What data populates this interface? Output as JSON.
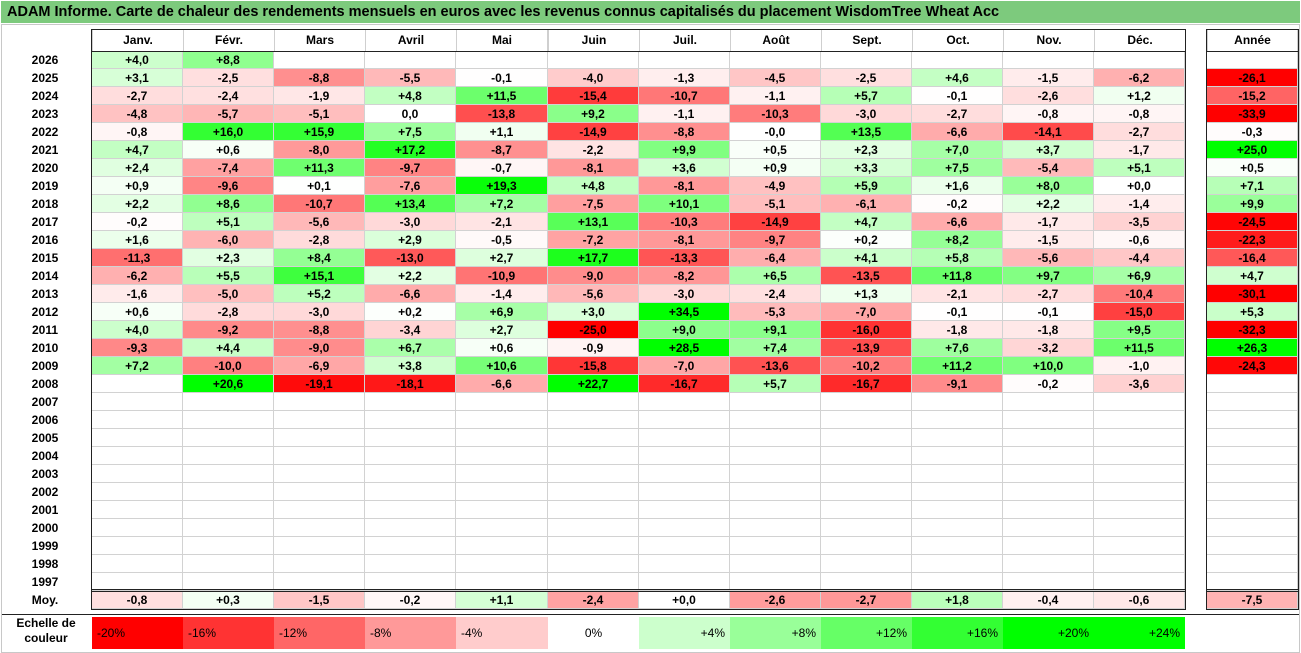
{
  "title": "ADAM Informe. Carte de chaleur des rendements mensuels en euros avec les revenus connus capitalisés du placement WisdomTree Wheat Acc",
  "chart_data": {
    "type": "heatmap",
    "title": "ADAM Informe. Carte de chaleur des rendements mensuels en euros avec les revenus connus capitalisés du placement WisdomTree Wheat Acc",
    "columns": [
      "Janv.",
      "Févr.",
      "Mars",
      "Avril",
      "Mai",
      "Juin",
      "Juil.",
      "Août",
      "Sept.",
      "Oct.",
      "Nov.",
      "Déc."
    ],
    "year_header": "Année",
    "rows": [
      {
        "year": "2026",
        "values": [
          "+4,0",
          "+8,8",
          "",
          "",
          "",
          "",
          "",
          "",
          "",
          "",
          "",
          ""
        ],
        "annual": ""
      },
      {
        "year": "2025",
        "values": [
          "+3,1",
          "-2,5",
          "-8,8",
          "-5,5",
          "-0,1",
          "-4,0",
          "-1,3",
          "-4,5",
          "-2,5",
          "+4,6",
          "-1,5",
          "-6,2"
        ],
        "annual": "-26,1"
      },
      {
        "year": "2024",
        "values": [
          "-2,7",
          "-2,4",
          "-1,9",
          "+4,8",
          "+11,5",
          "-15,4",
          "-10,7",
          "-1,1",
          "+5,7",
          "-0,1",
          "-2,6",
          "+1,2"
        ],
        "annual": "-15,2"
      },
      {
        "year": "2023",
        "values": [
          "-4,8",
          "-5,7",
          "-5,1",
          "0,0",
          "-13,8",
          "+9,2",
          "-1,1",
          "-10,3",
          "-3,0",
          "-2,7",
          "-0,8",
          "-0,8"
        ],
        "annual": "-33,9"
      },
      {
        "year": "2022",
        "values": [
          "-0,8",
          "+16,0",
          "+15,9",
          "+7,5",
          "+1,1",
          "-14,9",
          "-8,8",
          "-0,0",
          "+13,5",
          "-6,6",
          "-14,1",
          "-2,7"
        ],
        "annual": "-0,3"
      },
      {
        "year": "2021",
        "values": [
          "+4,7",
          "+0,6",
          "-8,0",
          "+17,2",
          "-8,7",
          "-2,2",
          "+9,9",
          "+0,5",
          "+2,3",
          "+7,0",
          "+3,7",
          "-1,7"
        ],
        "annual": "+25,0"
      },
      {
        "year": "2020",
        "values": [
          "+2,4",
          "-7,4",
          "+11,3",
          "-9,7",
          "-0,7",
          "-8,1",
          "+3,6",
          "+0,9",
          "+3,3",
          "+7,5",
          "-5,4",
          "+5,1"
        ],
        "annual": "+0,5"
      },
      {
        "year": "2019",
        "values": [
          "+0,9",
          "-9,6",
          "+0,1",
          "-7,6",
          "+19,3",
          "+4,8",
          "-8,1",
          "-4,9",
          "+5,9",
          "+1,6",
          "+8,0",
          "+0,0"
        ],
        "annual": "+7,1"
      },
      {
        "year": "2018",
        "values": [
          "+2,2",
          "+8,6",
          "-10,7",
          "+13,4",
          "+7,2",
          "-7,5",
          "+10,1",
          "-5,1",
          "-6,1",
          "-0,2",
          "+2,2",
          "-1,4"
        ],
        "annual": "+9,9"
      },
      {
        "year": "2017",
        "values": [
          "-0,2",
          "+5,1",
          "-5,6",
          "-3,0",
          "-2,1",
          "+13,1",
          "-10,3",
          "-14,9",
          "+4,7",
          "-6,6",
          "-1,7",
          "-3,5"
        ],
        "annual": "-24,5"
      },
      {
        "year": "2016",
        "values": [
          "+1,6",
          "-6,0",
          "-2,8",
          "+2,9",
          "-0,5",
          "-7,2",
          "-8,1",
          "-9,7",
          "+0,2",
          "+8,2",
          "-1,5",
          "-0,6"
        ],
        "annual": "-22,3"
      },
      {
        "year": "2015",
        "values": [
          "-11,3",
          "+2,3",
          "+8,4",
          "-13,0",
          "+2,7",
          "+17,7",
          "-13,3",
          "-6,4",
          "+4,1",
          "+5,8",
          "-5,6",
          "-4,4"
        ],
        "annual": "-16,4"
      },
      {
        "year": "2014",
        "values": [
          "-6,2",
          "+5,5",
          "+15,1",
          "+2,2",
          "-10,9",
          "-9,0",
          "-8,2",
          "+6,5",
          "-13,5",
          "+11,8",
          "+9,7",
          "+6,9"
        ],
        "annual": "+4,7"
      },
      {
        "year": "2013",
        "values": [
          "-1,6",
          "-5,0",
          "+5,2",
          "-6,6",
          "-1,4",
          "-5,6",
          "-3,0",
          "-2,4",
          "+1,3",
          "-2,1",
          "-2,7",
          "-10,4"
        ],
        "annual": "-30,1"
      },
      {
        "year": "2012",
        "values": [
          "+0,6",
          "-2,8",
          "-3,0",
          "+0,2",
          "+6,9",
          "+3,0",
          "+34,5",
          "-5,3",
          "-7,0",
          "-0,1",
          "-0,1",
          "-15,0"
        ],
        "annual": "+5,3"
      },
      {
        "year": "2011",
        "values": [
          "+4,0",
          "-9,2",
          "-8,8",
          "-3,4",
          "+2,7",
          "-25,0",
          "+9,0",
          "+9,1",
          "-16,0",
          "-1,8",
          "-1,8",
          "+9,5"
        ],
        "annual": "-32,3"
      },
      {
        "year": "2010",
        "values": [
          "-9,3",
          "+4,4",
          "-9,0",
          "+6,7",
          "+0,6",
          "-0,9",
          "+28,5",
          "+7,4",
          "-13,9",
          "+7,6",
          "-3,2",
          "+11,5"
        ],
        "annual": "+26,3"
      },
      {
        "year": "2009",
        "values": [
          "+7,2",
          "-10,0",
          "-6,9",
          "+3,8",
          "+10,6",
          "-15,8",
          "-7,0",
          "-13,6",
          "-10,2",
          "+11,2",
          "+10,0",
          "-1,0"
        ],
        "annual": "-24,3"
      },
      {
        "year": "2008",
        "values": [
          "",
          "+20,6",
          "-19,1",
          "-18,1",
          "-6,6",
          "+22,7",
          "-16,7",
          "+5,7",
          "-16,7",
          "-9,1",
          "-0,2",
          "-3,6"
        ],
        "annual": ""
      },
      {
        "year": "2007",
        "values": [
          "",
          "",
          "",
          "",
          "",
          "",
          "",
          "",
          "",
          "",
          "",
          ""
        ],
        "annual": ""
      },
      {
        "year": "2006",
        "values": [
          "",
          "",
          "",
          "",
          "",
          "",
          "",
          "",
          "",
          "",
          "",
          ""
        ],
        "annual": ""
      },
      {
        "year": "2005",
        "values": [
          "",
          "",
          "",
          "",
          "",
          "",
          "",
          "",
          "",
          "",
          "",
          ""
        ],
        "annual": ""
      },
      {
        "year": "2004",
        "values": [
          "",
          "",
          "",
          "",
          "",
          "",
          "",
          "",
          "",
          "",
          "",
          ""
        ],
        "annual": ""
      },
      {
        "year": "2003",
        "values": [
          "",
          "",
          "",
          "",
          "",
          "",
          "",
          "",
          "",
          "",
          "",
          ""
        ],
        "annual": ""
      },
      {
        "year": "2002",
        "values": [
          "",
          "",
          "",
          "",
          "",
          "",
          "",
          "",
          "",
          "",
          "",
          ""
        ],
        "annual": ""
      },
      {
        "year": "2001",
        "values": [
          "",
          "",
          "",
          "",
          "",
          "",
          "",
          "",
          "",
          "",
          "",
          ""
        ],
        "annual": ""
      },
      {
        "year": "2000",
        "values": [
          "",
          "",
          "",
          "",
          "",
          "",
          "",
          "",
          "",
          "",
          "",
          ""
        ],
        "annual": ""
      },
      {
        "year": "1999",
        "values": [
          "",
          "",
          "",
          "",
          "",
          "",
          "",
          "",
          "",
          "",
          "",
          ""
        ],
        "annual": ""
      },
      {
        "year": "1998",
        "values": [
          "",
          "",
          "",
          "",
          "",
          "",
          "",
          "",
          "",
          "",
          "",
          ""
        ],
        "annual": ""
      },
      {
        "year": "1997",
        "values": [
          "",
          "",
          "",
          "",
          "",
          "",
          "",
          "",
          "",
          "",
          "",
          ""
        ],
        "annual": ""
      }
    ],
    "average": {
      "label": "Moy.",
      "values": [
        "-0,8",
        "+0,3",
        "-1,5",
        "-0,2",
        "+1,1",
        "-2,4",
        "+0,0",
        "-2,6",
        "-2,7",
        "+1,8",
        "-0,4",
        "-0,6"
      ],
      "annual": "-7,5"
    },
    "scale": {
      "label": "Echelle de couleur",
      "steps": [
        "-20%",
        "-16%",
        "-12%",
        "-8%",
        "-4%",
        "0%",
        "+4%",
        "+8%",
        "+12%",
        "+16%",
        "+20%",
        "+24%"
      ]
    },
    "colors": {
      "negative_max": "#ff0000",
      "positive_max": "#00ff00",
      "neutral": "#ffffff",
      "header_bar": "#7dca7d"
    }
  }
}
